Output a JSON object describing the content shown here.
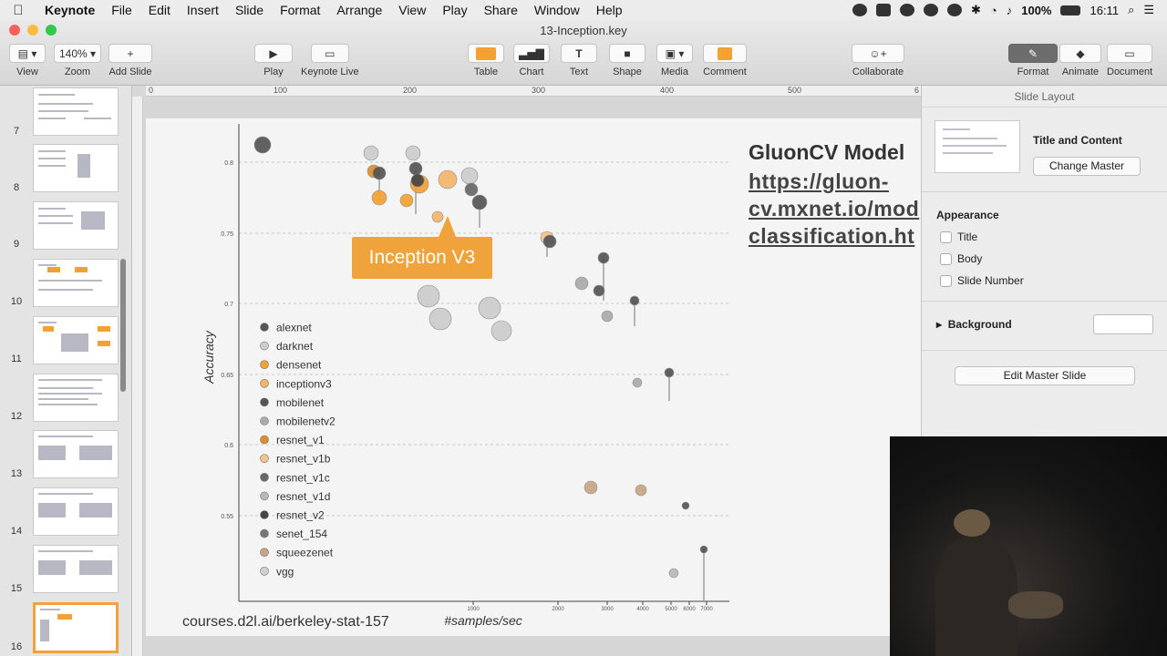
{
  "menubar": {
    "app": "Keynote",
    "items": [
      "File",
      "Edit",
      "Insert",
      "Slide",
      "Format",
      "Arrange",
      "View",
      "Play",
      "Share",
      "Window",
      "Help"
    ],
    "battery": "100%",
    "time": "16:11"
  },
  "window": {
    "title": "13-Inception.key"
  },
  "toolbar": {
    "view": "View",
    "zoom_value": "140%",
    "zoom": "Zoom",
    "add_slide": "Add Slide",
    "play": "Play",
    "keynote_live": "Keynote Live",
    "table": "Table",
    "chart": "Chart",
    "text": "Text",
    "shape": "Shape",
    "media": "Media",
    "comment": "Comment",
    "collaborate": "Collaborate",
    "format": "Format",
    "animate": "Animate",
    "document": "Document"
  },
  "navigator": {
    "slide_numbers": [
      "7",
      "8",
      "9",
      "10",
      "11",
      "12",
      "13",
      "14",
      "15",
      "16"
    ]
  },
  "ruler": {
    "h_ticks": [
      "0",
      "100",
      "200",
      "300",
      "400",
      "500",
      "6"
    ]
  },
  "slide": {
    "heading": "GluonCV Model",
    "link_lines": [
      "https://gluon-",
      "cv.mxnet.io/mod",
      "classification.ht"
    ],
    "footer": "courses.d2l.ai/berkeley-stat-157",
    "callout": "Inception V3",
    "accent": "#f0a33a"
  },
  "chart_data": {
    "type": "scatter",
    "xlabel": "#samples/sec",
    "ylabel": "Accuracy",
    "x_scale": "log",
    "x_ticks": [
      "1000",
      "2000",
      "3000",
      "4000",
      "5000",
      "6000",
      "7000"
    ],
    "y_ticks": [
      "0.8",
      "0.75",
      "0.7",
      "0.65",
      "0.6",
      "0.55"
    ],
    "legend": [
      "alexnet",
      "darknet",
      "densenet",
      "inceptionv3",
      "mobilenet",
      "mobilenetv2",
      "resnet_v1",
      "resnet_v1b",
      "resnet_v1c",
      "resnet_v1d",
      "resnet_v2",
      "senet_154",
      "squeezenet",
      "vgg"
    ],
    "legend_colors": [
      "#555555",
      "#cccccc",
      "#f5a132",
      "#f4b56a",
      "#555555",
      "#aaaaaa",
      "#e08a2c",
      "#f2c48c",
      "#666666",
      "#b8b8b8",
      "#444444",
      "#777777",
      "#c9a484",
      "#d0d0d0"
    ],
    "legend_placement": "left"
  },
  "inspector": {
    "header": "Slide Layout",
    "master_name": "Title and Content",
    "change_master": "Change Master",
    "appearance": "Appearance",
    "title": "Title",
    "body": "Body",
    "slide_number": "Slide Number",
    "background": "Background",
    "edit_master": "Edit Master Slide"
  }
}
